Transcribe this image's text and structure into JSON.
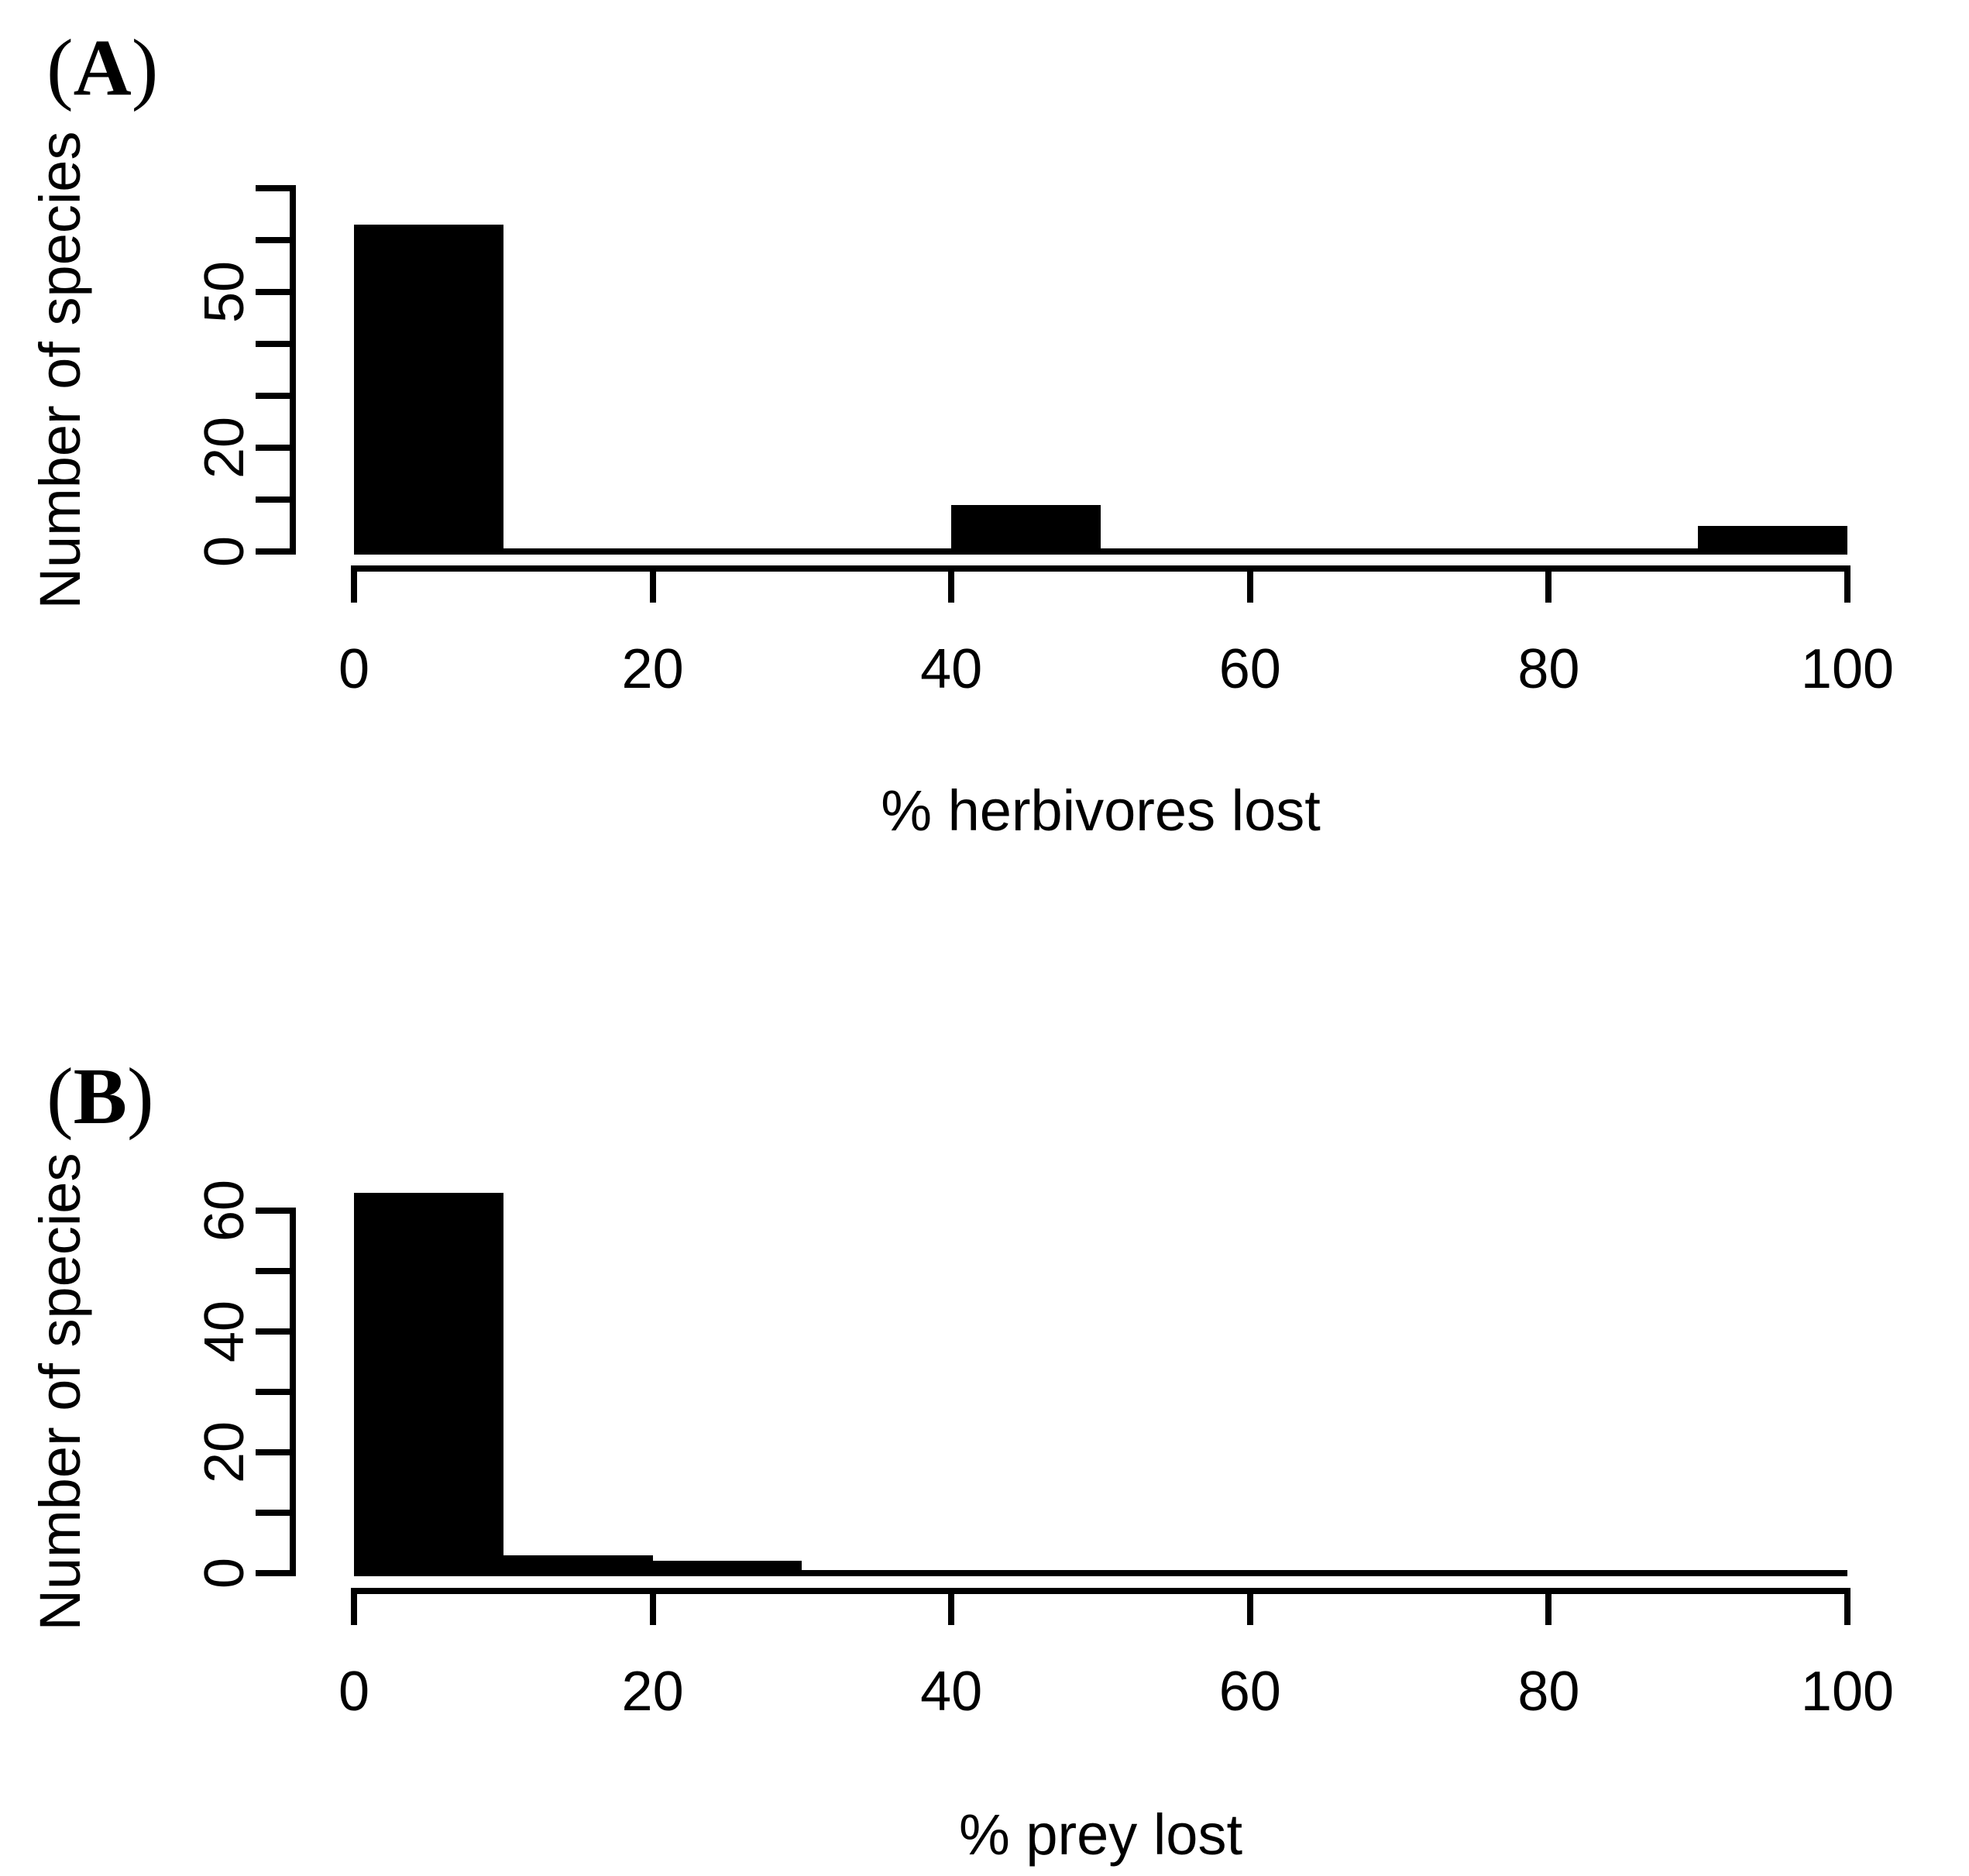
{
  "figure": {
    "background_color": "#ffffff",
    "ink_color": "#000000"
  },
  "chart_data": [
    {
      "type": "bar",
      "subtype": "histogram",
      "panel_label": "(A)",
      "title": "",
      "xlabel": "% herbivores lost",
      "ylabel": "Number of species",
      "xlim": [
        0,
        100
      ],
      "ylim": [
        0,
        70
      ],
      "x_ticks": [
        0,
        20,
        40,
        60,
        80,
        100
      ],
      "x_tick_labels": [
        "0",
        "20",
        "40",
        "60",
        "80",
        "100"
      ],
      "y_ticks": [
        0,
        10,
        20,
        30,
        40,
        50,
        60,
        70
      ],
      "y_labeled_ticks": [
        {
          "value": 0,
          "label": "0"
        },
        {
          "value": 20,
          "label": "20"
        },
        {
          "value": 50,
          "label": "50"
        }
      ],
      "bar_color": "#000000",
      "grid": false,
      "legend": false,
      "bins": [
        {
          "range": [
            0,
            10
          ],
          "count": 63
        },
        {
          "range": [
            40,
            50
          ],
          "count": 9
        },
        {
          "range": [
            90,
            100
          ],
          "count": 5
        }
      ]
    },
    {
      "type": "bar",
      "subtype": "histogram",
      "panel_label": "(B)",
      "title": "",
      "xlabel": "% prey lost",
      "ylabel": "Number of species",
      "xlim": [
        0,
        100
      ],
      "ylim": [
        0,
        60
      ],
      "x_ticks": [
        0,
        20,
        40,
        60,
        80,
        100
      ],
      "x_tick_labels": [
        "0",
        "20",
        "40",
        "60",
        "80",
        "100"
      ],
      "y_ticks": [
        0,
        10,
        20,
        30,
        40,
        50,
        60
      ],
      "y_labeled_ticks": [
        {
          "value": 0,
          "label": "0"
        },
        {
          "value": 20,
          "label": "20"
        },
        {
          "value": 40,
          "label": "40"
        },
        {
          "value": 60,
          "label": "60"
        }
      ],
      "bar_color": "#000000",
      "grid": false,
      "legend": false,
      "bins": [
        {
          "range": [
            0,
            10
          ],
          "count": 63
        },
        {
          "range": [
            10,
            20
          ],
          "count": 3
        },
        {
          "range": [
            20,
            30
          ],
          "count": 2
        }
      ]
    }
  ]
}
